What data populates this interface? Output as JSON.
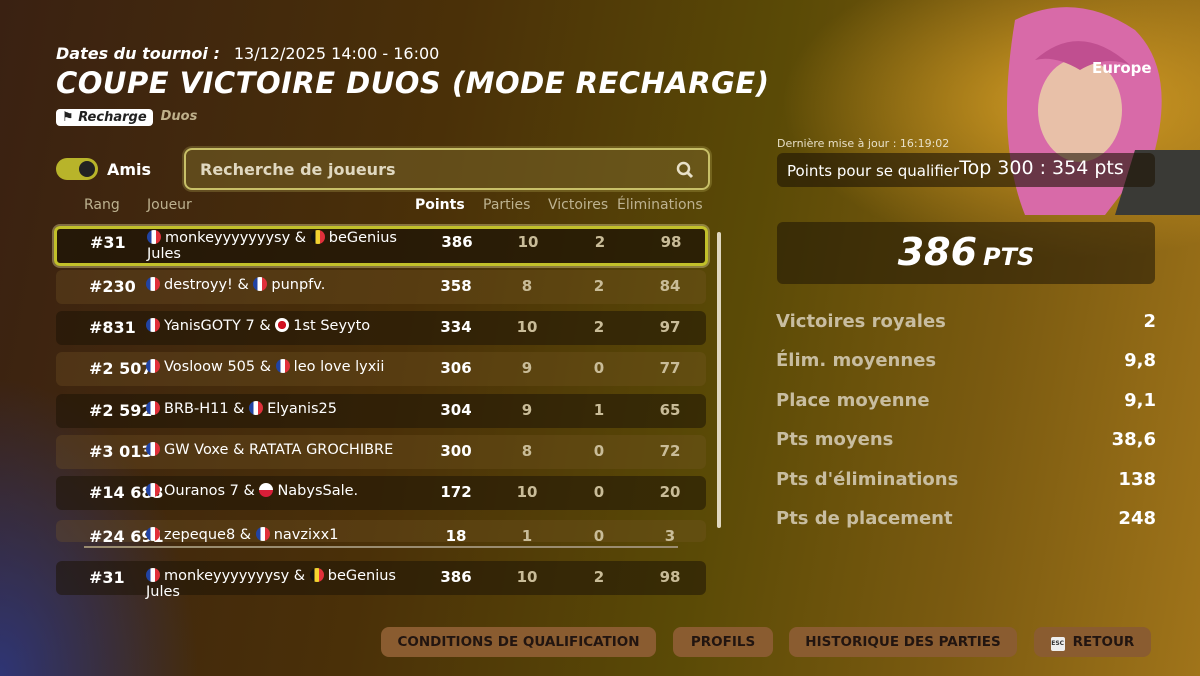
{
  "header": {
    "dates_label": "Dates du tournoi :",
    "dates_value": "13/12/2025 14:00 - 16:00",
    "title": "COUPE VICTOIRE DUOS (MODE RECHARGE)",
    "tag_mode": "Recharge",
    "tag_type": "Duos",
    "region": "Europe"
  },
  "filters": {
    "friends_label": "Amis",
    "friends_on": true,
    "search_placeholder": "Recherche de joueurs"
  },
  "columns": {
    "rank": "Rang",
    "player": "Joueur",
    "points": "Points",
    "games": "Parties",
    "wins": "Victoires",
    "elims": "Éliminations"
  },
  "rows": [
    {
      "rank": "#31",
      "p1": "monkeyyyyyyysy",
      "f1": "fr",
      "p2": "beGenius Jules",
      "f2": "be",
      "points": "386",
      "games": "10",
      "wins": "2",
      "elims": "98",
      "selected": true
    },
    {
      "rank": "#230",
      "p1": "destroyy!",
      "f1": "fr",
      "p2": "punpfv.",
      "f2": "fr",
      "points": "358",
      "games": "8",
      "wins": "2",
      "elims": "84"
    },
    {
      "rank": "#831",
      "p1": "YanisGOTY 7",
      "f1": "fr",
      "p2": "1st Seyyto",
      "f2": "jp",
      "points": "334",
      "games": "10",
      "wins": "2",
      "elims": "97"
    },
    {
      "rank": "#2 507",
      "p1": "Vosloow 505",
      "f1": "fr",
      "p2": "leo love lyxii",
      "f2": "fr",
      "points": "306",
      "games": "9",
      "wins": "0",
      "elims": "77"
    },
    {
      "rank": "#2 592",
      "p1": "BRB-H11",
      "f1": "fr",
      "p2": "Elyanis25",
      "f2": "fr",
      "points": "304",
      "games": "9",
      "wins": "1",
      "elims": "65"
    },
    {
      "rank": "#3 013",
      "p1": "GW Voxe",
      "f1": "fr",
      "p2": "RATATA GROCHIBRE",
      "f2": "",
      "points": "300",
      "games": "8",
      "wins": "0",
      "elims": "72"
    },
    {
      "rank": "#14 683",
      "p1": "Ouranos 7",
      "f1": "fr",
      "p2": "NabysSale.",
      "f2": "pl",
      "points": "172",
      "games": "10",
      "wins": "0",
      "elims": "20"
    },
    {
      "rank": "#24 691",
      "p1": "zepeque8",
      "f1": "fr",
      "p2": "navzixx1",
      "f2": "fr",
      "points": "18",
      "games": "1",
      "wins": "0",
      "elims": "3"
    }
  ],
  "my_row": {
    "rank": "#31",
    "p1": "monkeyyyyyyysy",
    "f1": "fr",
    "p2": "beGenius Jules",
    "f2": "be",
    "points": "386",
    "games": "10",
    "wins": "2",
    "elims": "98"
  },
  "summary": {
    "last_update": "Dernière mise à jour : 16:19:02",
    "qualify_label": "Points pour se qualifier",
    "qualify_value": "Top 300 : 354 pts",
    "total_points": "386",
    "total_unit": "PTS",
    "stats": [
      {
        "label": "Victoires royales",
        "value": "2"
      },
      {
        "label": "Élim. moyennes",
        "value": "9,8"
      },
      {
        "label": "Place moyenne",
        "value": "9,1"
      },
      {
        "label": "Pts moyens",
        "value": "38,6"
      },
      {
        "label": "Pts d'éliminations",
        "value": "138"
      },
      {
        "label": "Pts de placement",
        "value": "248"
      }
    ]
  },
  "buttons": {
    "conditions": "CONDITIONS DE QUALIFICATION",
    "profiles": "PROFILS",
    "history": "HISTORIQUE DES PARTIES",
    "esc_key": "ESC",
    "back": "RETOUR"
  }
}
